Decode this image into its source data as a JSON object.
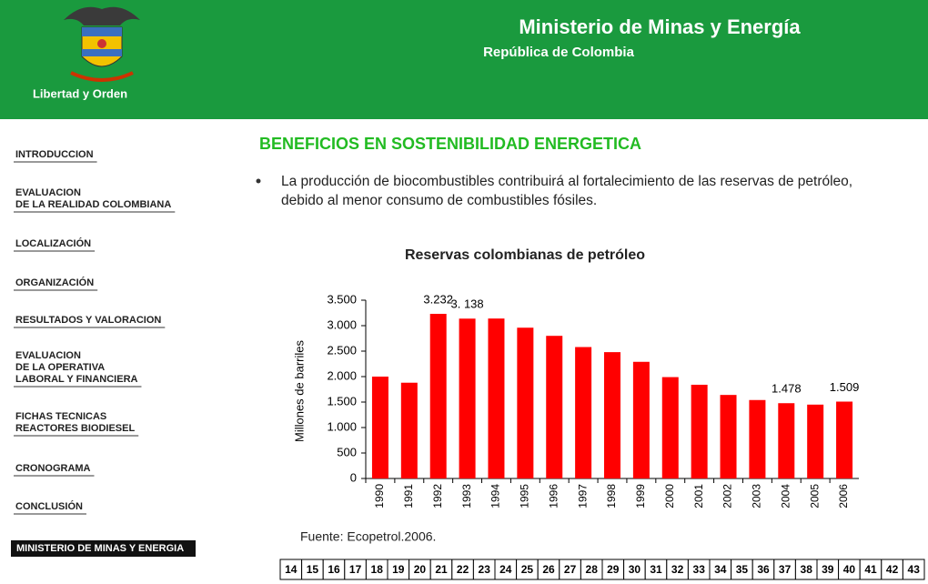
{
  "header": {
    "title": "Ministerio de Minas y Energía",
    "subtitle": "República de Colombia",
    "motto": "Libertad y Orden"
  },
  "nav": [
    [
      "INTRODUCCION"
    ],
    [
      "EVALUACION",
      "DE LA REALIDAD COLOMBIANA"
    ],
    [
      "LOCALIZACIÓN"
    ],
    [
      "ORGANIZACIÓN"
    ],
    [
      "RESULTADOS Y VALORACION"
    ],
    [
      "EVALUACION",
      "DE LA OPERATIVA",
      "LABORAL Y FINANCIERA"
    ],
    [
      "FICHAS TECNICAS",
      "REACTORES BIODIESEL"
    ],
    [
      "CRONOGRAMA"
    ],
    [
      "CONCLUSIÓN"
    ]
  ],
  "nav_active": "MINISTERIO DE MINAS Y ENERGIA",
  "slide_title": "BENEFICIOS EN SOSTENIBILIDAD ENERGETICA",
  "bullet": "La producción de biocombustibles contribuirá al fortalecimiento de las reservas de petróleo, debido al menor consumo de combustibles fósiles.",
  "chart_data": {
    "type": "bar",
    "title": "Reservas colombianas de petróleo",
    "y_label": "Millones de barriles",
    "categories": [
      "1990",
      "1991",
      "1992",
      "1993",
      "1994",
      "1995",
      "1996",
      "1997",
      "1998",
      "1999",
      "2000",
      "2001",
      "2002",
      "2003",
      "2004",
      "2005",
      "2006"
    ],
    "values": [
      2000,
      1880,
      3232,
      3138,
      3140,
      2960,
      2800,
      2580,
      2480,
      2290,
      1990,
      1840,
      1640,
      1540,
      1478,
      1450,
      1509
    ],
    "value_labels": [
      null,
      null,
      "3.232",
      "3. 138",
      null,
      null,
      null,
      null,
      null,
      null,
      null,
      null,
      null,
      null,
      "1.478",
      null,
      "1.509"
    ],
    "color": "#ff0000",
    "ylim": [
      0,
      3500
    ],
    "yticks": [
      0,
      {
        "value": 500,
        "label": "500"
      },
      {
        "value": 1000,
        "label": "1.000"
      },
      {
        "value": 1500,
        "label": "1.500"
      },
      {
        "value": 2000,
        "label": "2.000"
      },
      {
        "value": 2500,
        "label": "2.500"
      },
      {
        "value": 3000,
        "label": "3.000"
      },
      {
        "value": 3500,
        "label": "3.500"
      }
    ],
    "source": "Fuente:  Ecopetrol.2006."
  },
  "pages": [
    "14",
    "15",
    "16",
    "17",
    "18",
    "19",
    "20",
    "21",
    "22",
    "23",
    "24",
    "25",
    "26",
    "27",
    "28",
    "29",
    "30",
    "31",
    "32",
    "33",
    "34",
    "35",
    "36",
    "37",
    "38",
    "39",
    "40",
    "41",
    "42",
    "43"
  ]
}
